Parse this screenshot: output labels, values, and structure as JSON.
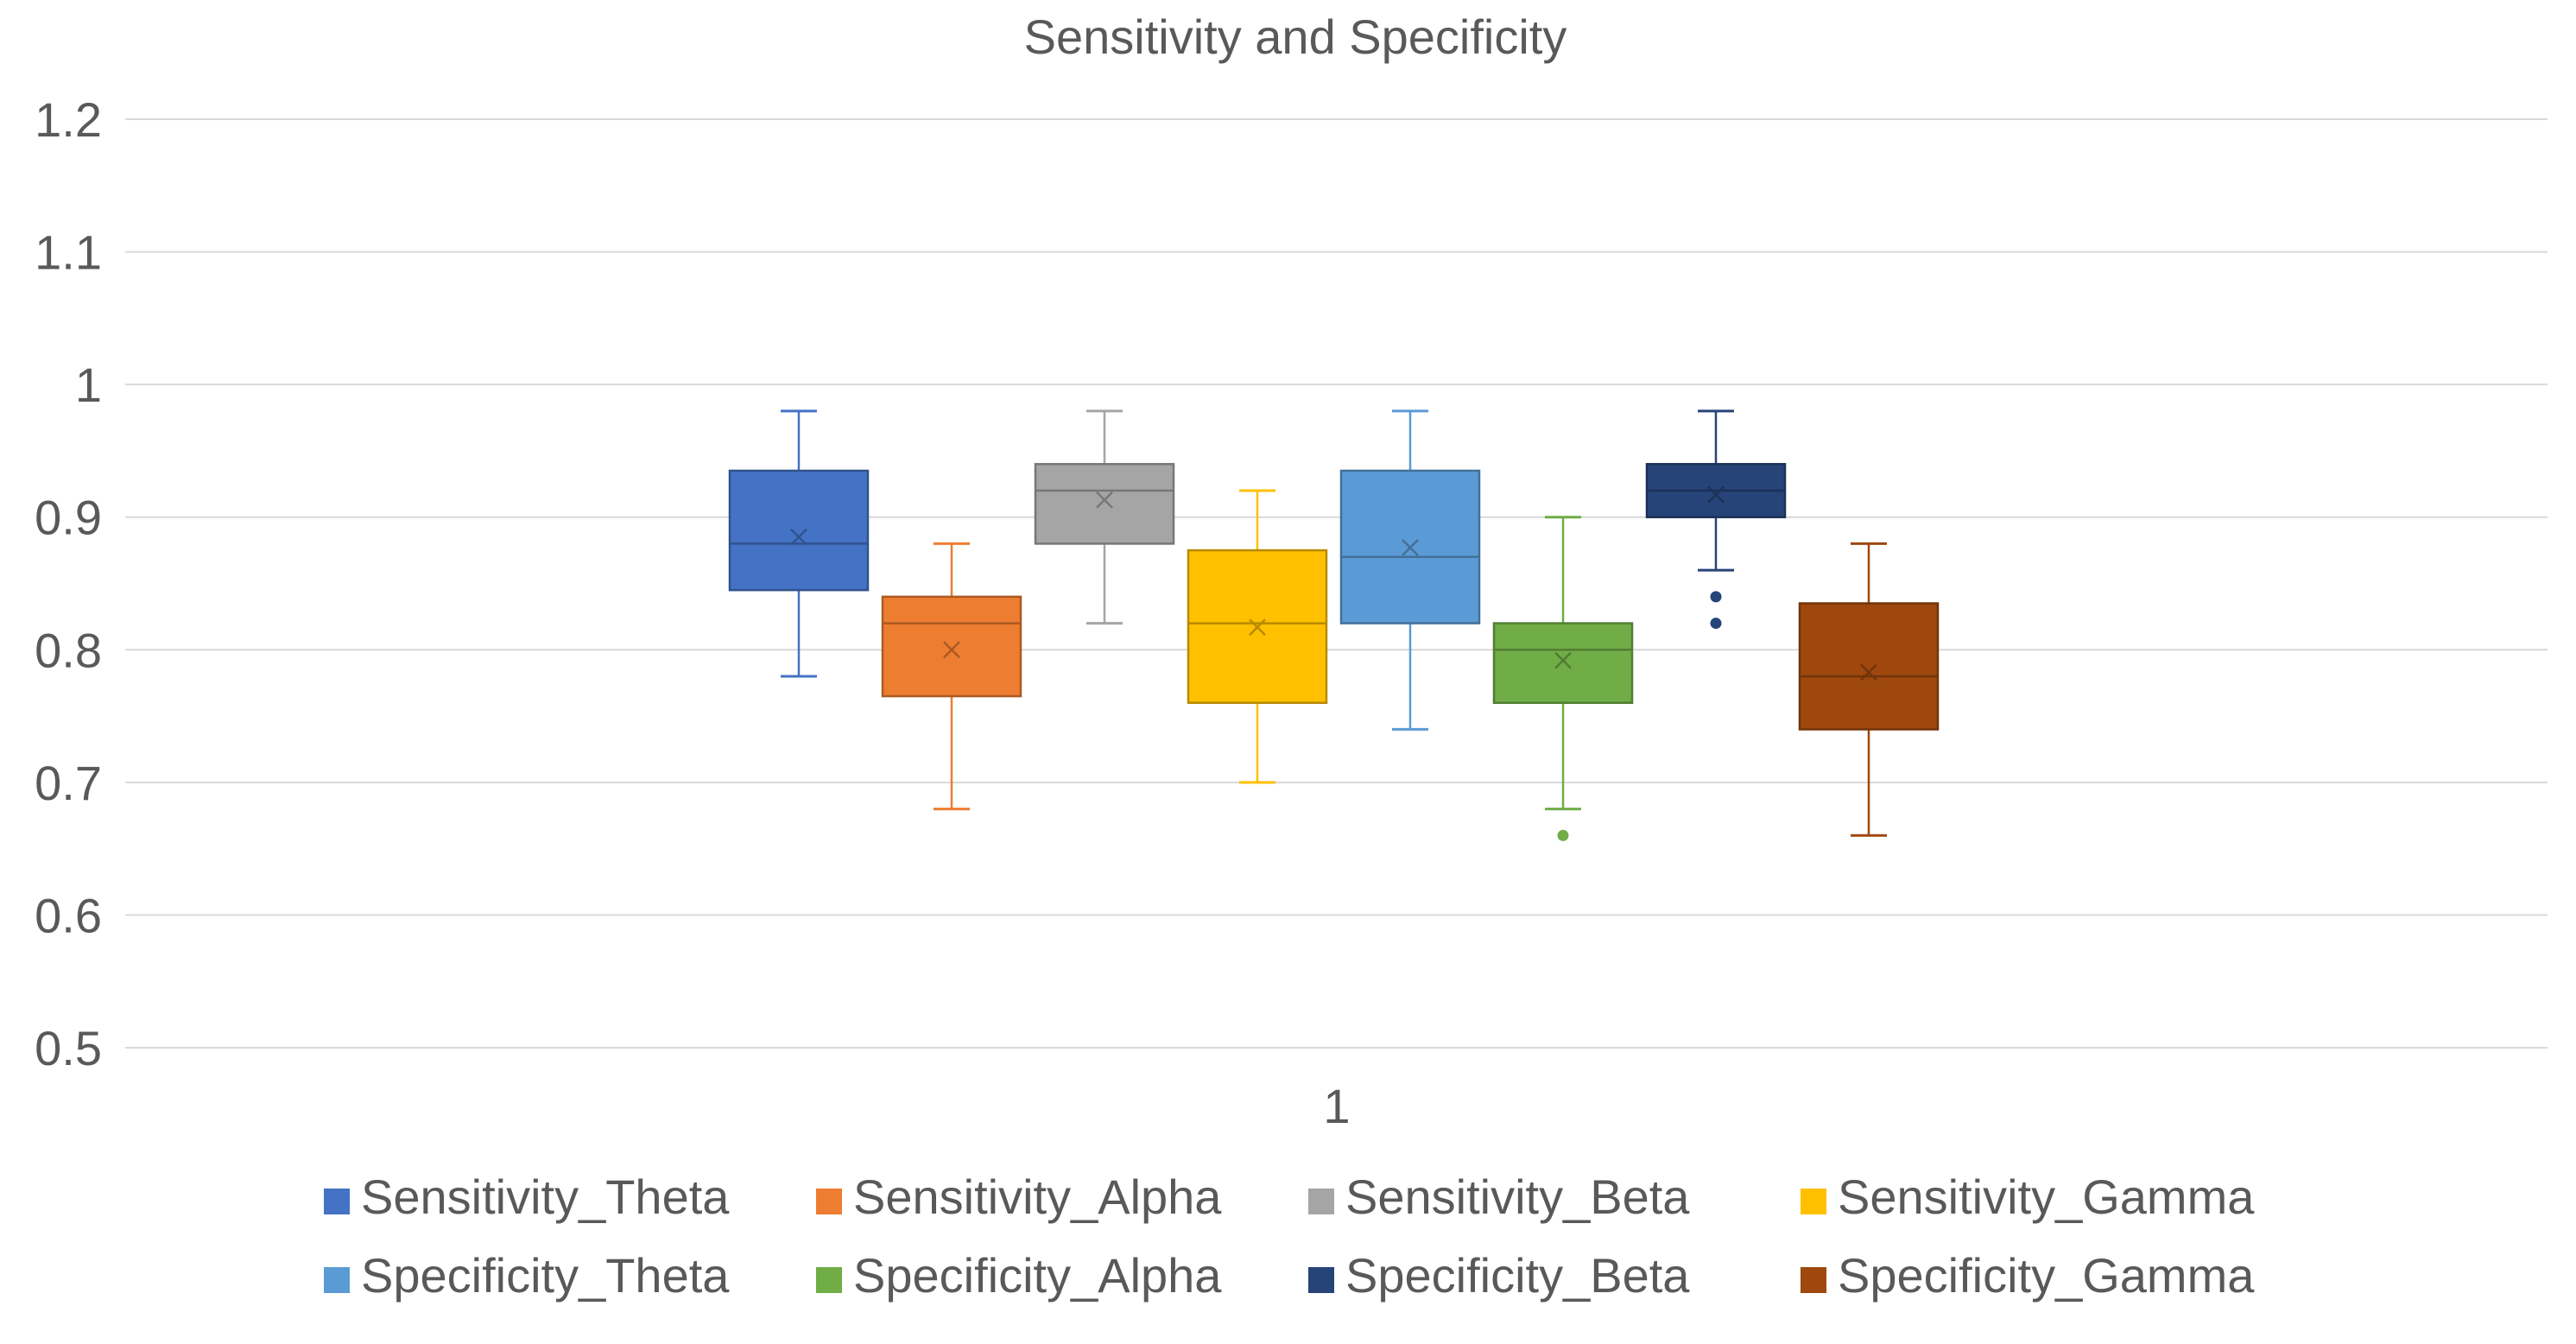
{
  "chart_data": {
    "type": "boxplot",
    "title": "Sensitivity and Specificity",
    "xlabel": "",
    "ylabel": "",
    "categories": [
      "1"
    ],
    "ylim": [
      0.5,
      1.2
    ],
    "yticks": [
      {
        "value": 0.5,
        "label": "0.5"
      },
      {
        "value": 0.6,
        "label": "0.6"
      },
      {
        "value": 0.7,
        "label": "0.7"
      },
      {
        "value": 0.8,
        "label": "0.8"
      },
      {
        "value": 0.9,
        "label": "0.9"
      },
      {
        "value": 1.0,
        "label": "1"
      },
      {
        "value": 1.1,
        "label": "1.1"
      },
      {
        "value": 1.2,
        "label": "1.2"
      }
    ],
    "grid": true,
    "legend_position": "bottom",
    "series": [
      {
        "name": "Sensitivity_Theta",
        "color": "#4472C4",
        "min": 0.78,
        "q1": 0.845,
        "median": 0.88,
        "q3": 0.935,
        "max": 0.98,
        "mean": 0.885,
        "outliers": []
      },
      {
        "name": "Sensitivity_Alpha",
        "color": "#ED7D31",
        "min": 0.68,
        "q1": 0.765,
        "median": 0.82,
        "q3": 0.84,
        "max": 0.88,
        "mean": 0.8,
        "outliers": []
      },
      {
        "name": "Sensitivity_Beta",
        "color": "#A5A5A5",
        "min": 0.82,
        "q1": 0.88,
        "median": 0.92,
        "q3": 0.94,
        "max": 0.98,
        "mean": 0.913,
        "outliers": []
      },
      {
        "name": "Sensitivity_Gamma",
        "color": "#FFC000",
        "min": 0.7,
        "q1": 0.76,
        "median": 0.82,
        "q3": 0.875,
        "max": 0.92,
        "mean": 0.817,
        "outliers": []
      },
      {
        "name": "Specificity_Theta",
        "color": "#5B9BD5",
        "min": 0.74,
        "q1": 0.82,
        "median": 0.87,
        "q3": 0.935,
        "max": 0.98,
        "mean": 0.877,
        "outliers": []
      },
      {
        "name": "Specificity_Alpha",
        "color": "#70AD47",
        "min": 0.68,
        "q1": 0.76,
        "median": 0.8,
        "q3": 0.82,
        "max": 0.9,
        "mean": 0.792,
        "outliers": [
          0.66
        ]
      },
      {
        "name": "Specificity_Beta",
        "color": "#264478",
        "min": 0.86,
        "q1": 0.9,
        "median": 0.92,
        "q3": 0.94,
        "max": 0.98,
        "mean": 0.917,
        "outliers": [
          0.84,
          0.82
        ]
      },
      {
        "name": "Specificity_Gamma",
        "color": "#9E480E",
        "min": 0.66,
        "q1": 0.74,
        "median": 0.78,
        "q3": 0.835,
        "max": 0.88,
        "mean": 0.783,
        "outliers": []
      }
    ]
  }
}
